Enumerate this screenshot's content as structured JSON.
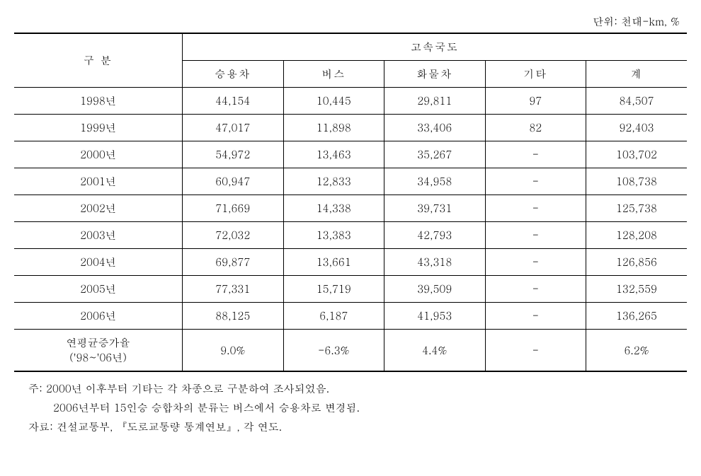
{
  "unit_label": "단위: 천대-km, %",
  "table": {
    "header_group_left": "구 분",
    "header_group_right": "고속국도",
    "columns": [
      "승용차",
      "버스",
      "화물차",
      "기타",
      "계"
    ],
    "rows": [
      {
        "year": "1998년",
        "car": "44,154",
        "bus": "10,445",
        "truck": "29,811",
        "other": "97",
        "total": "84,507"
      },
      {
        "year": "1999년",
        "car": "47,017",
        "bus": "11,898",
        "truck": "33,406",
        "other": "82",
        "total": "92,403"
      },
      {
        "year": "2000년",
        "car": "54,972",
        "bus": "13,463",
        "truck": "35,267",
        "other": "-",
        "total": "103,702"
      },
      {
        "year": "2001년",
        "car": "60,947",
        "bus": "12,833",
        "truck": "34,958",
        "other": "-",
        "total": "108,738"
      },
      {
        "year": "2002년",
        "car": "71,669",
        "bus": "14,338",
        "truck": "39,731",
        "other": "-",
        "total": "125,738"
      },
      {
        "year": "2003년",
        "car": "72,032",
        "bus": "13,383",
        "truck": "42,793",
        "other": "-",
        "total": "128,208"
      },
      {
        "year": "2004년",
        "car": "69,877",
        "bus": "13,661",
        "truck": "43,318",
        "other": "-",
        "total": "126,856"
      },
      {
        "year": "2005년",
        "car": "77,331",
        "bus": "15,719",
        "truck": "39,509",
        "other": "-",
        "total": "132,559"
      },
      {
        "year": "2006년",
        "car": "88,125",
        "bus": "6,187",
        "truck": "41,953",
        "other": "-",
        "total": "136,265"
      }
    ],
    "summary_row": {
      "label_line1": "연평균증가율",
      "label_line2": "('98~'06년)",
      "car": "9.0%",
      "bus": "-6.3%",
      "truck": "4.4%",
      "other": "-",
      "total": "6.2%"
    }
  },
  "notes": {
    "line1": "주: 2000년 이후부터 기타는 각 차종으로 구분하여 조사되었음.",
    "line2": "2006년부터 15인승 승합차의 분류는 버스에서 승용차로 변경됨.",
    "line3": "자료: 건설교통부, 『도로교통량 통계연보』, 각 연도."
  }
}
